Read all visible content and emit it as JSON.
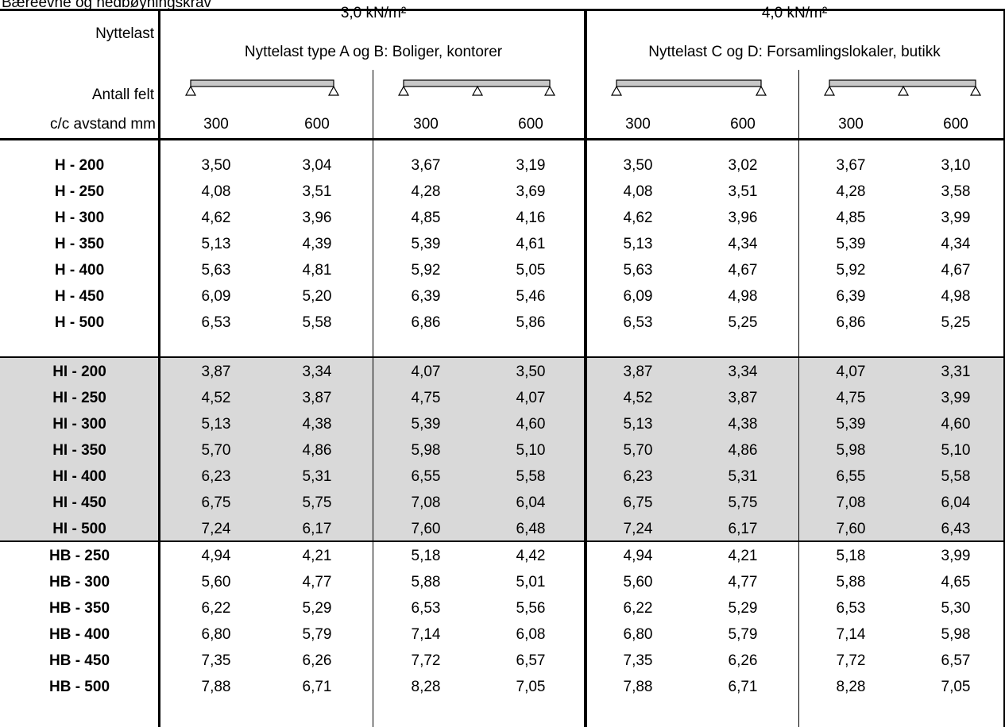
{
  "caption": "Bæreevne og nedbøyningskrav",
  "header": {
    "label_load": "Nyttelast",
    "label_spans": "Antall felt",
    "label_spacing": "c/c avstand mm",
    "groups": [
      {
        "load": "3,0 kN/m²",
        "desc": "Nyttelast type A og B: Boliger, kontorer"
      },
      {
        "load": "4,0 kN/m²",
        "desc": "Nyttelast C og D: Forsamlingslokaler, butikk"
      }
    ],
    "spacings": [
      "300",
      "600",
      "300",
      "600",
      "300",
      "600",
      "300",
      "600"
    ]
  },
  "beam_icons": [
    "single-span-beam-icon",
    "two-span-beam-icon",
    "single-span-beam-icon",
    "two-span-beam-icon"
  ],
  "colors": {
    "shaded_band": "#d9d9d9",
    "beam_fill": "#c8c8c8"
  },
  "sections": [
    {
      "shaded": false,
      "rows": [
        {
          "label": "H - 200",
          "values": [
            "3,50",
            "3,04",
            "3,67",
            "3,19",
            "3,50",
            "3,02",
            "3,67",
            "3,10"
          ]
        },
        {
          "label": "H - 250",
          "values": [
            "4,08",
            "3,51",
            "4,28",
            "3,69",
            "4,08",
            "3,51",
            "4,28",
            "3,58"
          ]
        },
        {
          "label": "H - 300",
          "values": [
            "4,62",
            "3,96",
            "4,85",
            "4,16",
            "4,62",
            "3,96",
            "4,85",
            "3,99"
          ]
        },
        {
          "label": "H - 350",
          "values": [
            "5,13",
            "4,39",
            "5,39",
            "4,61",
            "5,13",
            "4,34",
            "5,39",
            "4,34"
          ]
        },
        {
          "label": "H - 400",
          "values": [
            "5,63",
            "4,81",
            "5,92",
            "5,05",
            "5,63",
            "4,67",
            "5,92",
            "4,67"
          ]
        },
        {
          "label": "H - 450",
          "values": [
            "6,09",
            "5,20",
            "6,39",
            "5,46",
            "6,09",
            "4,98",
            "6,39",
            "4,98"
          ]
        },
        {
          "label": "H - 500",
          "values": [
            "6,53",
            "5,58",
            "6,86",
            "5,86",
            "6,53",
            "5,25",
            "6,86",
            "5,25"
          ]
        }
      ]
    },
    {
      "shaded": true,
      "rows": [
        {
          "label": "HI - 200",
          "values": [
            "3,87",
            "3,34",
            "4,07",
            "3,50",
            "3,87",
            "3,34",
            "4,07",
            "3,31"
          ]
        },
        {
          "label": "HI - 250",
          "values": [
            "4,52",
            "3,87",
            "4,75",
            "4,07",
            "4,52",
            "3,87",
            "4,75",
            "3,99"
          ]
        },
        {
          "label": "HI - 300",
          "values": [
            "5,13",
            "4,38",
            "5,39",
            "4,60",
            "5,13",
            "4,38",
            "5,39",
            "4,60"
          ]
        },
        {
          "label": "HI - 350",
          "values": [
            "5,70",
            "4,86",
            "5,98",
            "5,10",
            "5,70",
            "4,86",
            "5,98",
            "5,10"
          ]
        },
        {
          "label": "HI - 400",
          "values": [
            "6,23",
            "5,31",
            "6,55",
            "5,58",
            "6,23",
            "5,31",
            "6,55",
            "5,58"
          ]
        },
        {
          "label": "HI - 450",
          "values": [
            "6,75",
            "5,75",
            "7,08",
            "6,04",
            "6,75",
            "5,75",
            "7,08",
            "6,04"
          ]
        },
        {
          "label": "HI - 500",
          "values": [
            "7,24",
            "6,17",
            "7,60",
            "6,48",
            "7,24",
            "6,17",
            "7,60",
            "6,43"
          ]
        }
      ]
    },
    {
      "shaded": false,
      "rows": [
        {
          "label": "HB - 250",
          "values": [
            "4,94",
            "4,21",
            "5,18",
            "4,42",
            "4,94",
            "4,21",
            "5,18",
            "3,99"
          ]
        },
        {
          "label": "HB - 300",
          "values": [
            "5,60",
            "4,77",
            "5,88",
            "5,01",
            "5,60",
            "4,77",
            "5,88",
            "4,65"
          ]
        },
        {
          "label": "HB - 350",
          "values": [
            "6,22",
            "5,29",
            "6,53",
            "5,56",
            "6,22",
            "5,29",
            "6,53",
            "5,30"
          ]
        },
        {
          "label": "HB - 400",
          "values": [
            "6,80",
            "5,79",
            "7,14",
            "6,08",
            "6,80",
            "5,79",
            "7,14",
            "5,98"
          ]
        },
        {
          "label": "HB - 450",
          "values": [
            "7,35",
            "6,26",
            "7,72",
            "6,57",
            "7,35",
            "6,26",
            "7,72",
            "6,57"
          ]
        },
        {
          "label": "HB - 500",
          "values": [
            "7,88",
            "6,71",
            "8,28",
            "7,05",
            "7,88",
            "6,71",
            "8,28",
            "7,05"
          ]
        }
      ]
    }
  ]
}
